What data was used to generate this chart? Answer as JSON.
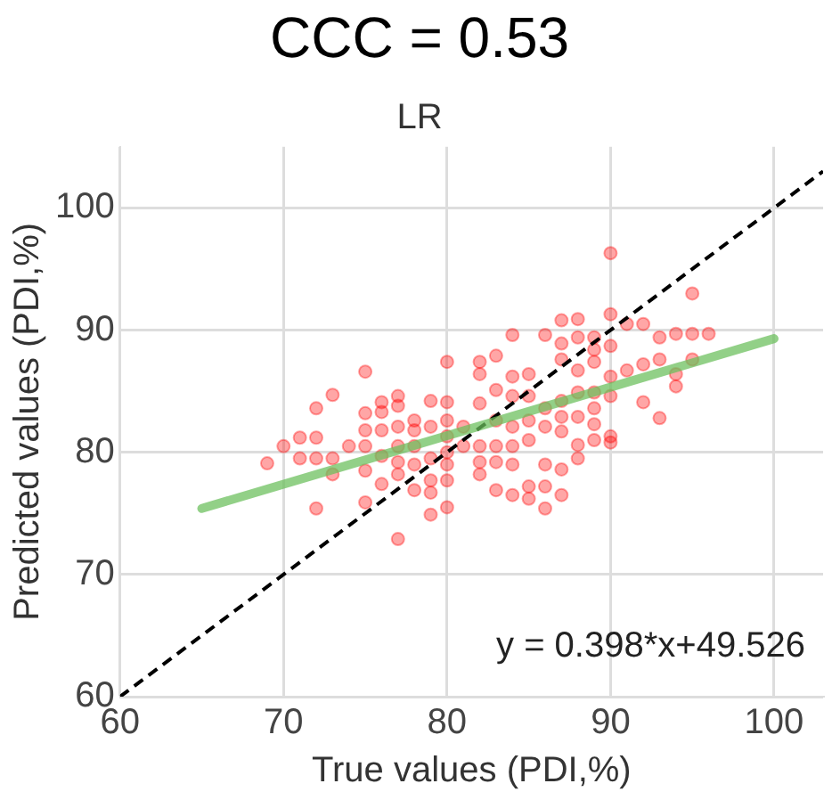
{
  "chart_data": {
    "type": "scatter",
    "title": "CCC = 0.53",
    "subtitle": "LR",
    "xlabel": "True values (PDI,%)",
    "ylabel": "Predicted values (PDI,%)",
    "xlim": [
      60,
      103
    ],
    "ylim": [
      60,
      105
    ],
    "xticks": [
      60,
      70,
      80,
      90,
      100
    ],
    "yticks": [
      60,
      70,
      80,
      90,
      100
    ],
    "grid": true,
    "annotations": [
      "y = 0.398*x+49.526"
    ],
    "series": [
      {
        "marker": "circle",
        "color": "#ff0000",
        "x": [
          69,
          70,
          71,
          71,
          72,
          72,
          72,
          72,
          73,
          73,
          73,
          74,
          75,
          75,
          75,
          75,
          75,
          75,
          76,
          76,
          76,
          76,
          76,
          77,
          77,
          77,
          77,
          77,
          77,
          77,
          78,
          78,
          78,
          78,
          78,
          79,
          79,
          79,
          79,
          79,
          79,
          80,
          80,
          80,
          80,
          80,
          80,
          80,
          80,
          81,
          81,
          82,
          82,
          82,
          82,
          82,
          82,
          83,
          83,
          83,
          83,
          83,
          83,
          84,
          84,
          84,
          84,
          84,
          84,
          84,
          85,
          85,
          85,
          85,
          85,
          85,
          86,
          86,
          86,
          86,
          86,
          86,
          87,
          87,
          87,
          87,
          87,
          87,
          87,
          87,
          88,
          88,
          88,
          88,
          88,
          88,
          88,
          89,
          89,
          89,
          89,
          89,
          89,
          89,
          90,
          90,
          90,
          90,
          90,
          90,
          90,
          91,
          91,
          92,
          92,
          92,
          93,
          93,
          93,
          94,
          94,
          94,
          95,
          95,
          95,
          96
        ],
        "values": [
          79.1,
          80.5,
          81.2,
          79.5,
          83.6,
          81.2,
          79.5,
          75.4,
          84.7,
          79.5,
          78.2,
          80.5,
          86.6,
          83.2,
          81.8,
          80.5,
          78.5,
          75.9,
          84.1,
          83.3,
          81.8,
          79.7,
          77.4,
          84.6,
          83.8,
          82.1,
          80.5,
          79.2,
          78.2,
          72.9,
          82.6,
          81.8,
          80.5,
          79,
          76.9,
          84.2,
          82.1,
          79.5,
          77.7,
          76.7,
          74.9,
          87.4,
          84.1,
          82.6,
          81.3,
          80,
          79,
          77.7,
          75.5,
          82.1,
          80.5,
          87.4,
          86.4,
          84,
          80.5,
          79.2,
          78.2,
          87.9,
          85.1,
          82.6,
          80.5,
          79.2,
          76.9,
          89.6,
          86.2,
          84.6,
          82.1,
          80.5,
          79,
          76.5,
          86.4,
          84.6,
          82.6,
          81,
          77.2,
          76.2,
          89.6,
          83.6,
          82.1,
          79,
          77.2,
          75.4,
          90.8,
          88.9,
          87.6,
          84.2,
          82.9,
          81.7,
          78.6,
          76.5,
          90.9,
          89.4,
          86.7,
          84.9,
          82.9,
          80.6,
          79.5,
          89.4,
          88.4,
          87.4,
          84.9,
          83.6,
          82.3,
          81,
          96.3,
          91.3,
          88.7,
          86.2,
          84.6,
          81.3,
          80.8,
          90.5,
          86.7,
          90.5,
          87.2,
          84.1,
          89.4,
          87.6,
          82.8,
          89.7,
          86.4,
          85.4,
          93,
          89.7,
          87.6,
          89.7
        ]
      },
      {
        "type": "line",
        "marker": "none",
        "color": "#6abf5c",
        "x": [
          65,
          100
        ],
        "values": [
          75.4,
          89.3
        ]
      },
      {
        "type": "line",
        "marker": "none",
        "color": "#000000",
        "line_style": "dashed",
        "x": [
          60,
          103
        ],
        "values": [
          60,
          103
        ]
      }
    ]
  }
}
